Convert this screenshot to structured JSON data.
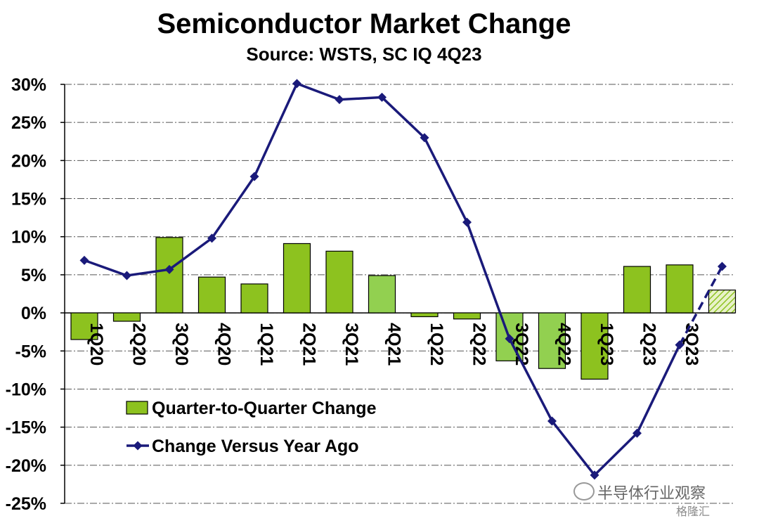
{
  "chart_data": {
    "type": "bar",
    "title": "Semiconductor Market Change",
    "subtitle": "Source: WSTS, SC IQ 4Q23",
    "categories": [
      "1Q20",
      "2Q20",
      "3Q20",
      "4Q20",
      "1Q21",
      "2Q21",
      "3Q21",
      "4Q21",
      "1Q22",
      "2Q22",
      "3Q22",
      "4Q22",
      "1Q23",
      "2Q23",
      "3Q23",
      ""
    ],
    "ylim": [
      -25,
      30
    ],
    "y_ticks": [
      30,
      25,
      20,
      15,
      10,
      5,
      0,
      -5,
      -10,
      -15,
      -20,
      -25
    ],
    "y_tick_labels": [
      "30%",
      "25%",
      "20%",
      "15%",
      "10%",
      "5%",
      "0%",
      "-5%",
      "-10%",
      "-15%",
      "-20%",
      "-25%"
    ],
    "grid": true,
    "legend_position": "lower-left",
    "series": [
      {
        "name": "Quarter-to-Quarter Change",
        "type": "bar",
        "values": [
          -3.5,
          -1.1,
          9.9,
          4.7,
          3.8,
          9.1,
          8.1,
          4.9,
          -0.5,
          -0.8,
          -6.3,
          -7.3,
          -8.7,
          6.1,
          6.3,
          3.0
        ],
        "fill_colors": [
          "#8dc21f",
          "#8dc21f",
          "#8dc21f",
          "#8dc21f",
          "#8dc21f",
          "#8dc21f",
          "#8dc21f",
          "#92d050",
          "#8dc21f",
          "#8dc21f",
          "#92d050",
          "#92d050",
          "#8dc21f",
          "#8dc21f",
          "#8dc21f",
          "hatched"
        ]
      },
      {
        "name": "Change Versus Year Ago",
        "type": "line",
        "values": [
          6.9,
          4.9,
          5.7,
          9.8,
          17.9,
          30.1,
          28.0,
          28.3,
          23.0,
          11.9,
          -3.4,
          -14.2,
          -21.3,
          -15.8,
          -4.2,
          6.1
        ],
        "color": "#1a1a7a",
        "forecast_from_index": 14
      }
    ]
  },
  "watermark": {
    "text": "半导体行业观察",
    "logo": "格隆汇"
  },
  "colors": {
    "bar": "#8dc21f",
    "bar_light": "#92d050",
    "line": "#1a1a7a",
    "grid": "#555555"
  }
}
